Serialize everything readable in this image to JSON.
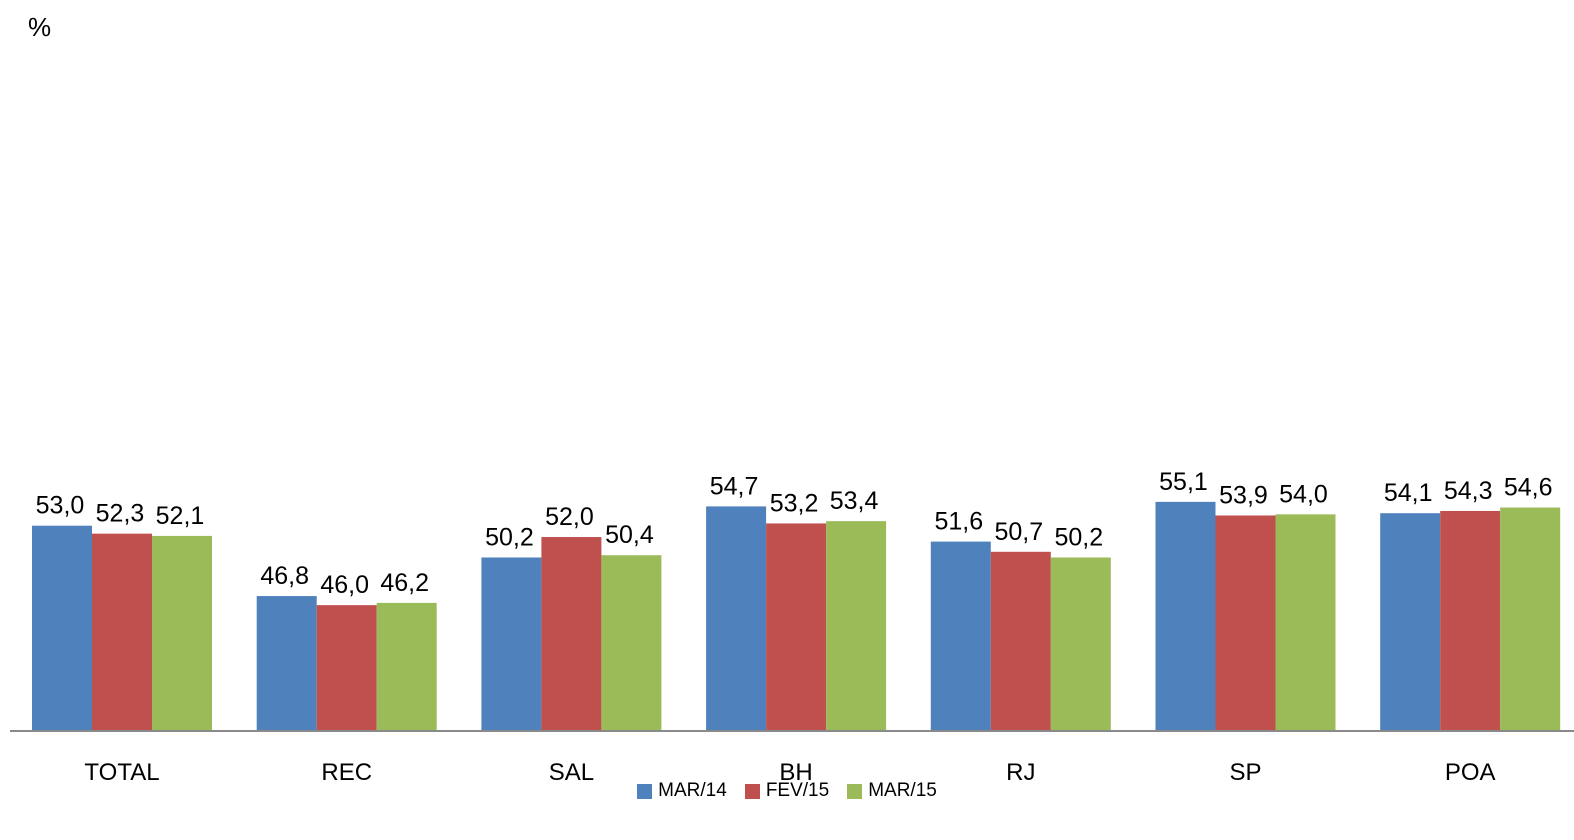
{
  "chart_data": {
    "type": "bar",
    "unit_label": "%",
    "categories": [
      "TOTAL",
      "REC",
      "SAL",
      "BH",
      "RJ",
      "SP",
      "POA"
    ],
    "series": [
      {
        "name": "MAR/14",
        "color": "#4F81BD",
        "values": [
          53.0,
          46.8,
          50.2,
          54.7,
          51.6,
          55.1,
          54.1
        ],
        "labels": [
          "53,0",
          "46,8",
          "50,2",
          "54,7",
          "51,6",
          "55,1",
          "54,1"
        ]
      },
      {
        "name": "FEV/15",
        "color": "#C0504D",
        "values": [
          52.3,
          46.0,
          52.0,
          53.2,
          50.7,
          53.9,
          54.3
        ],
        "labels": [
          "52,3",
          "46,0",
          "52,0",
          "53,2",
          "50,7",
          "53,9",
          "54,3"
        ]
      },
      {
        "name": "MAR/15",
        "color": "#9BBB59",
        "values": [
          52.1,
          46.2,
          50.4,
          53.4,
          50.2,
          54.0,
          54.6
        ],
        "labels": [
          "52,1",
          "46,2",
          "50,4",
          "53,4",
          "50,2",
          "54,0",
          "54,6"
        ]
      }
    ],
    "legend_position": "bottom",
    "grid": false
  }
}
